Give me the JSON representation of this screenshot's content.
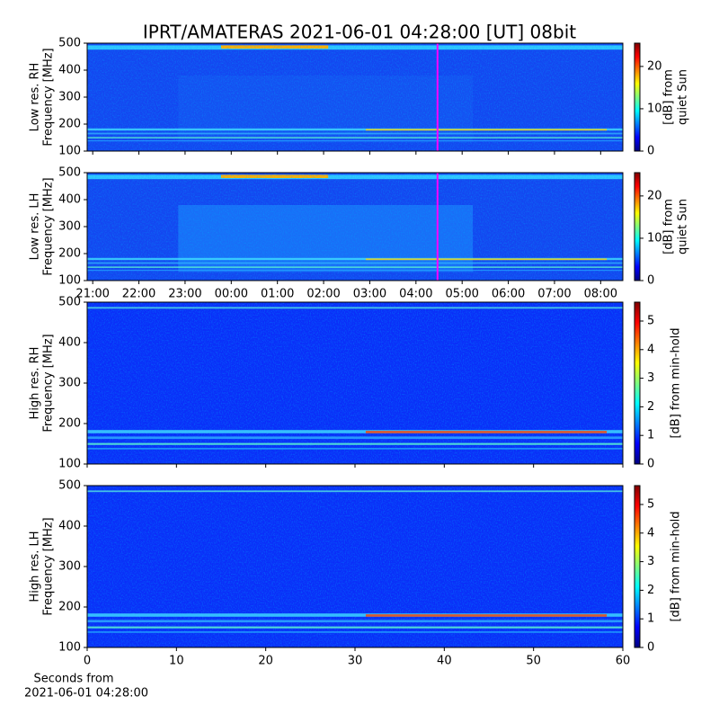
{
  "title": "IPRT/AMATERAS 2021-06-01 04:28:00 [UT]   08bit",
  "chart_data": [
    {
      "type": "heatmap",
      "ylabel": [
        "Low res. RH",
        "Frequency [MHz]"
      ],
      "xlim": [
        20.88,
        32.48
      ],
      "xticks": [
        {
          "value": 21,
          "label": "21:00"
        },
        {
          "value": 22,
          "label": "22:00"
        },
        {
          "value": 23,
          "label": "23:00"
        },
        {
          "value": 24,
          "label": "00:00"
        },
        {
          "value": 25,
          "label": "01:00"
        },
        {
          "value": 26,
          "label": "02:00"
        },
        {
          "value": 27,
          "label": "03:00"
        },
        {
          "value": 28,
          "label": "04:00"
        },
        {
          "value": 29,
          "label": "05:00"
        },
        {
          "value": 30,
          "label": "06:00"
        },
        {
          "value": 31,
          "label": "07:00"
        },
        {
          "value": 32,
          "label": "08:00"
        }
      ],
      "show_xticklabels": false,
      "ylim": [
        100,
        500
      ],
      "yticks": [
        100,
        200,
        300,
        400,
        500
      ],
      "vline": {
        "x": 28.4667,
        "color": "#ff00ff"
      },
      "colorbar": {
        "label": [
          "[dB] from",
          "quiet Sun"
        ],
        "lim": [
          0,
          25.5
        ],
        "ticks": [
          0,
          10,
          20
        ]
      }
    },
    {
      "type": "heatmap",
      "ylabel": [
        "Low res. LH",
        "Frequency [MHz]"
      ],
      "xlim": [
        20.88,
        32.48
      ],
      "xticks": [
        {
          "value": 21,
          "label": "21:00"
        },
        {
          "value": 22,
          "label": "22:00"
        },
        {
          "value": 23,
          "label": "23:00"
        },
        {
          "value": 24,
          "label": "00:00"
        },
        {
          "value": 25,
          "label": "01:00"
        },
        {
          "value": 26,
          "label": "02:00"
        },
        {
          "value": 27,
          "label": "03:00"
        },
        {
          "value": 28,
          "label": "04:00"
        },
        {
          "value": 29,
          "label": "05:00"
        },
        {
          "value": 30,
          "label": "06:00"
        },
        {
          "value": 31,
          "label": "07:00"
        },
        {
          "value": 32,
          "label": "08:00"
        }
      ],
      "show_xticklabels": true,
      "ylim": [
        100,
        500
      ],
      "yticks": [
        100,
        200,
        300,
        400,
        500
      ],
      "vline": {
        "x": 28.4667,
        "color": "#ff00ff"
      },
      "colorbar": {
        "label": [
          "[dB] from",
          "quiet Sun"
        ],
        "lim": [
          0,
          25.5
        ],
        "ticks": [
          0,
          10,
          20
        ]
      }
    },
    {
      "type": "heatmap",
      "ylabel": [
        "High res. RH",
        "Frequency [MHz]"
      ],
      "xlim": [
        0,
        60
      ],
      "xticks": [
        0,
        10,
        20,
        30,
        40,
        50,
        60
      ],
      "show_xticklabels": false,
      "ylim": [
        100,
        500
      ],
      "yticks": [
        100,
        200,
        300,
        400,
        500
      ],
      "colorbar": {
        "label": [
          "[dB] from min-hold"
        ],
        "lim": [
          0,
          5.66
        ],
        "ticks": [
          0,
          1,
          2,
          3,
          4,
          5
        ]
      }
    },
    {
      "type": "heatmap",
      "ylabel": [
        "High res. LH",
        "Frequency [MHz]"
      ],
      "xlim": [
        0,
        60
      ],
      "xticks": [
        0,
        10,
        20,
        30,
        40,
        50,
        60
      ],
      "show_xticklabels": true,
      "xlabel": [
        "Seconds from",
        "2021-06-01 04:28:00"
      ],
      "ylim": [
        100,
        500
      ],
      "yticks": [
        100,
        200,
        300,
        400,
        500
      ],
      "colorbar": {
        "label": [
          "[dB] from min-hold"
        ],
        "lim": [
          0,
          5.66
        ],
        "ticks": [
          0,
          1,
          2,
          3,
          4,
          5
        ]
      }
    }
  ]
}
